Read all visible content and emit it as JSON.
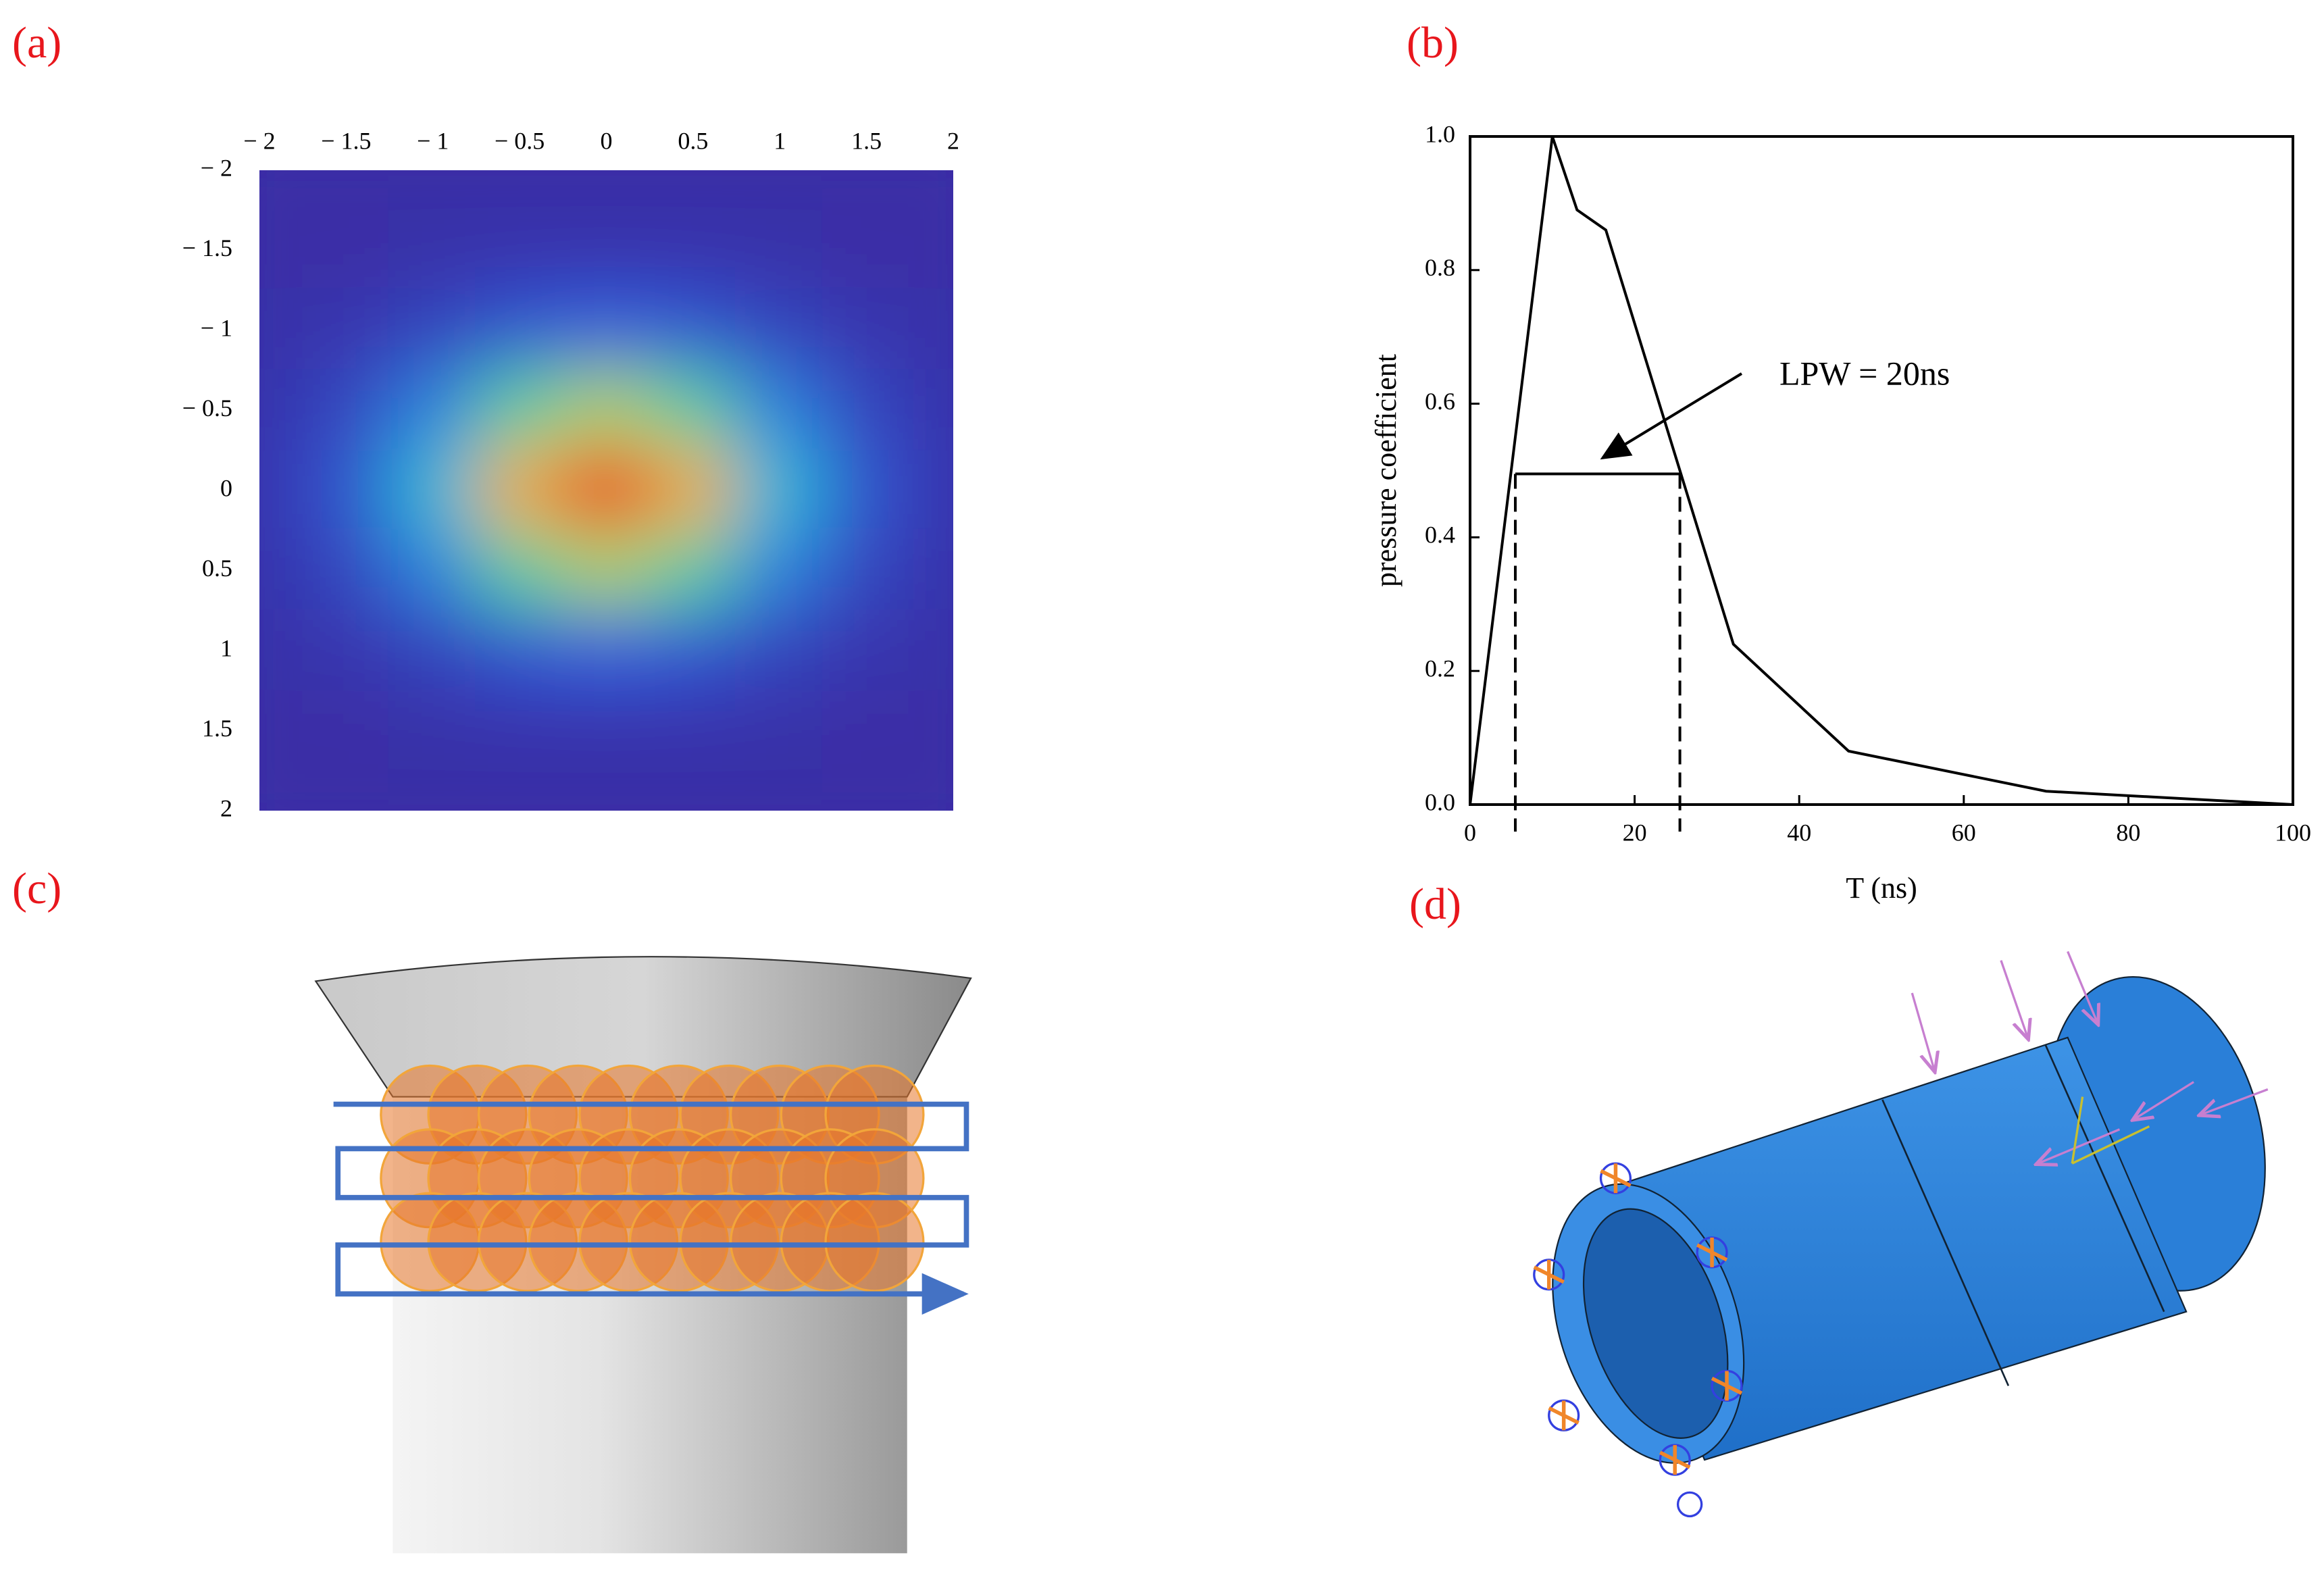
{
  "panel_labels": [
    "(a)",
    "(b)",
    "(c)",
    "(d)"
  ],
  "chart_data": [
    {
      "type": "heatmap",
      "x": [
        -2,
        -1.5,
        -1,
        -0.5,
        0,
        0.5,
        1,
        1.5,
        2
      ],
      "y": [
        -2,
        -1.5,
        -1,
        -0.5,
        0,
        0.5,
        1,
        1.5,
        2
      ],
      "z": [
        [
          0,
          0,
          0,
          0,
          0,
          0,
          0,
          0,
          0
        ],
        [
          0,
          0,
          0.01,
          0.02,
          0.02,
          0.02,
          0.01,
          0,
          0
        ],
        [
          0.01,
          0.03,
          0.08,
          0.15,
          0.19,
          0.15,
          0.08,
          0.03,
          0.01
        ],
        [
          0.02,
          0.09,
          0.27,
          0.53,
          0.66,
          0.53,
          0.27,
          0.09,
          0.02
        ],
        [
          0.03,
          0.14,
          0.41,
          0.8,
          1,
          0.8,
          0.41,
          0.14,
          0.03
        ],
        [
          0.02,
          0.09,
          0.27,
          0.53,
          0.66,
          0.53,
          0.27,
          0.09,
          0.02
        ],
        [
          0.01,
          0.03,
          0.08,
          0.15,
          0.19,
          0.15,
          0.08,
          0.03,
          0.01
        ],
        [
          0,
          0,
          0.01,
          0.02,
          0.02,
          0.02,
          0.01,
          0,
          0
        ],
        [
          0,
          0,
          0,
          0,
          0,
          0,
          0,
          0,
          0
        ]
      ],
      "colormap": "jet",
      "xlim": [
        -2,
        2
      ],
      "ylim": [
        2,
        -2
      ],
      "xaxis_position": "top",
      "xticks": [
        {
          "value": -2,
          "label": "− 2"
        },
        {
          "value": -1.5,
          "label": "− 1.5"
        },
        {
          "value": -1,
          "label": "− 1"
        },
        {
          "value": -0.5,
          "label": "− 0.5"
        },
        0,
        0.5,
        1,
        1.5,
        2
      ],
      "yticks": [
        {
          "value": -2,
          "label": "− 2"
        },
        {
          "value": -1.5,
          "label": "− 1.5"
        },
        {
          "value": -1,
          "label": "− 1"
        },
        {
          "value": -0.5,
          "label": "− 0.5"
        },
        0,
        0.5,
        1,
        1.5,
        2
      ]
    },
    {
      "type": "line",
      "x": [
        0,
        10,
        13,
        16.5,
        32,
        46,
        70,
        100
      ],
      "values": [
        0,
        1,
        0.89,
        0.86,
        0.24,
        0.08,
        0.02,
        0
      ],
      "color": "#000000",
      "x_label": "T (ns)",
      "y_label": "pressure coefficient",
      "xlim": [
        0,
        100
      ],
      "ylim": [
        0,
        1
      ],
      "xticks": [
        0,
        20,
        40,
        60,
        80,
        100
      ],
      "yticks": [
        {
          "value": 0,
          "label": "0.0"
        },
        0.2,
        0.4,
        0.6,
        0.8,
        {
          "value": 1,
          "label": "1.0"
        }
      ],
      "width_marker": {
        "x": [
          5.5,
          25.5
        ],
        "y": 0.495
      },
      "annotation": "LPW = 20ns"
    }
  ]
}
